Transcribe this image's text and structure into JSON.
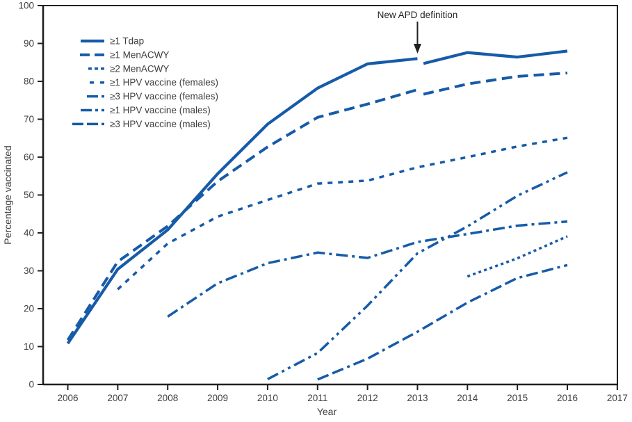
{
  "figure": {
    "background_color": "#ffffff",
    "line_color": "#165ba8",
    "axis_color": "#231f20",
    "text_color": "#3d3d3d"
  },
  "chart_data": {
    "type": "line",
    "title": "",
    "xlabel": "Year",
    "ylabel": "Percentage vaccinated",
    "xlim": [
      2005.5,
      2017
    ],
    "ylim": [
      0,
      100
    ],
    "x_ticks": [
      2006,
      2007,
      2008,
      2009,
      2010,
      2011,
      2012,
      2013,
      2014,
      2015,
      2016,
      2017
    ],
    "y_ticks": [
      0,
      10,
      20,
      30,
      40,
      50,
      60,
      70,
      80,
      90,
      100
    ],
    "grid": false,
    "legend_position": "upper-left-inside",
    "annotation": {
      "text": "New APD definition",
      "year": 2013,
      "note": "arrow points to break in the Tdap and MenACWY lines at 2013"
    },
    "series": [
      {
        "label": "≥1 Tdap",
        "line_style": "solid",
        "segments": [
          [
            [
              2006,
              10.8
            ],
            [
              2007,
              30.4
            ],
            [
              2008,
              40.8
            ],
            [
              2009,
              55.6
            ],
            [
              2010,
              68.7
            ],
            [
              2011,
              78.2
            ],
            [
              2012,
              84.6
            ],
            [
              2013,
              86.0
            ]
          ],
          [
            [
              2013.12,
              84.7
            ],
            [
              2014,
              87.6
            ],
            [
              2015,
              86.4
            ],
            [
              2016,
              88.0
            ]
          ]
        ]
      },
      {
        "label": "≥1 MenACWY",
        "line_style": "long-dash",
        "segments": [
          [
            [
              2006,
              11.7
            ],
            [
              2007,
              32.4
            ],
            [
              2008,
              41.8
            ],
            [
              2009,
              53.6
            ],
            [
              2010,
              62.7
            ],
            [
              2011,
              70.5
            ],
            [
              2012,
              74.0
            ],
            [
              2013,
              77.8
            ]
          ],
          [
            [
              2013.12,
              76.6
            ],
            [
              2014,
              79.3
            ],
            [
              2015,
              81.3
            ],
            [
              2016,
              82.2
            ]
          ]
        ]
      },
      {
        "label": "≥2 MenACWY",
        "line_style": "dot",
        "segments": [
          [
            [
              2014,
              28.5
            ],
            [
              2015,
              33.3
            ],
            [
              2016,
              39.1
            ]
          ]
        ]
      },
      {
        "label": "≥1 HPV vaccine (females)",
        "line_style": "square-dash",
        "segments": [
          [
            [
              2007,
              25.1
            ],
            [
              2008,
              37.2
            ],
            [
              2009,
              44.3
            ],
            [
              2010,
              48.7
            ],
            [
              2011,
              53.0
            ],
            [
              2012,
              53.8
            ],
            [
              2013,
              57.3
            ],
            [
              2014,
              60.0
            ],
            [
              2015,
              62.8
            ],
            [
              2016,
              65.1
            ]
          ]
        ]
      },
      {
        "label": "≥3 HPV vaccine (females)",
        "line_style": "dash-dot",
        "segments": [
          [
            [
              2008,
              17.9
            ],
            [
              2009,
              26.7
            ],
            [
              2010,
              32.0
            ],
            [
              2011,
              34.8
            ],
            [
              2012,
              33.4
            ],
            [
              2013,
              37.6
            ],
            [
              2014,
              39.7
            ],
            [
              2015,
              41.9
            ],
            [
              2016,
              43.0
            ]
          ]
        ]
      },
      {
        "label": "≥1 HPV vaccine (males)",
        "line_style": "dash-dot-dot",
        "segments": [
          [
            [
              2010,
              1.4
            ],
            [
              2011,
              8.3
            ],
            [
              2012,
              20.8
            ],
            [
              2013,
              34.6
            ],
            [
              2014,
              41.7
            ],
            [
              2015,
              49.8
            ],
            [
              2016,
              56.0
            ]
          ]
        ]
      },
      {
        "label": "≥3 HPV vaccine (males)",
        "line_style": "dash-dash-dot",
        "segments": [
          [
            [
              2011,
              1.3
            ],
            [
              2012,
              6.8
            ],
            [
              2013,
              13.9
            ],
            [
              2014,
              21.6
            ],
            [
              2015,
              28.1
            ],
            [
              2016,
              31.5
            ]
          ]
        ]
      }
    ]
  }
}
